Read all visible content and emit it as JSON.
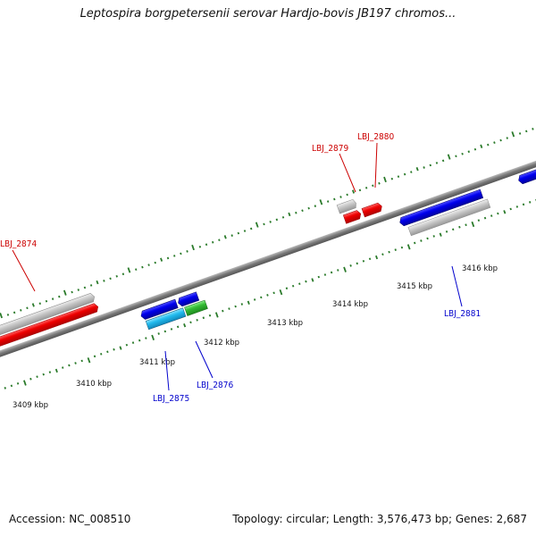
{
  "title": "Leptospira borgpetersenii serovar Hardjo-bovis JB197 chromos...",
  "footer": {
    "accession": "Accession: NC_008510",
    "summary": "Topology: circular; Length: 3,576,473 bp; Genes: 2,687"
  },
  "colors": {
    "backbone": "#888888",
    "tick": "#2a7a2a",
    "forward_gene": "#e00000",
    "reverse_gene": "#0000e0",
    "pseudo_gene": "#b8b8b8",
    "cyan_gene": "#22bbee",
    "green_gene": "#33bb33",
    "label_red": "#cc0000",
    "label_blue": "#0000cc"
  },
  "scale_labels": [
    "3409 kbp",
    "3410 kbp",
    "3411 kbp",
    "3412 kbp",
    "3413 kbp",
    "3414 kbp",
    "3415 kbp",
    "3416 kbp"
  ],
  "gene_labels": [
    {
      "id": "lbl_2874",
      "text": "LBJ_2874",
      "strand": "forward"
    },
    {
      "id": "lbl_2879",
      "text": "LBJ_2879",
      "strand": "forward"
    },
    {
      "id": "lbl_2880",
      "text": "LBJ_2880",
      "strand": "forward"
    },
    {
      "id": "lbl_2875",
      "text": "LBJ_2875",
      "strand": "reverse"
    },
    {
      "id": "lbl_2876",
      "text": "LBJ_2876",
      "strand": "reverse"
    },
    {
      "id": "lbl_2881",
      "text": "LBJ_2881",
      "strand": "reverse"
    }
  ]
}
